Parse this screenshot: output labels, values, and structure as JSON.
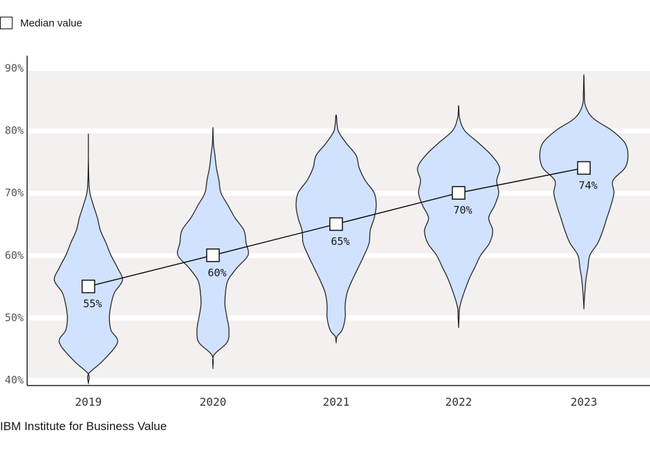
{
  "legend": {
    "label": "Median value"
  },
  "source": "IBM Institute for Business Value",
  "chart_data": {
    "type": "violin",
    "categories": [
      "2019",
      "2020",
      "2021",
      "2022",
      "2023"
    ],
    "ylim": [
      40,
      90
    ],
    "yticks": [
      40,
      50,
      60,
      70,
      80,
      90
    ],
    "ytick_labels": [
      "40%",
      "50%",
      "60%",
      "70%",
      "80%",
      "90%"
    ],
    "grid": true,
    "legend_position": "top-left",
    "colors": {
      "violin_fill": "#d0e2ff",
      "violin_stroke": "#262626",
      "band_fill": "#f5f0f0",
      "line": "#000000"
    },
    "medians": [
      55,
      60,
      65,
      70,
      74
    ],
    "median_labels": [
      "55%",
      "60%",
      "65%",
      "70%",
      "74%"
    ],
    "distributions": [
      {
        "year": "2019",
        "profile": [
          [
            39.5,
            0
          ],
          [
            41,
            0.5
          ],
          [
            43,
            28
          ],
          [
            46,
            58
          ],
          [
            48,
            45
          ],
          [
            50,
            42
          ],
          [
            52,
            45
          ],
          [
            54,
            52
          ],
          [
            56,
            68
          ],
          [
            58,
            58
          ],
          [
            60,
            45
          ],
          [
            62,
            35
          ],
          [
            64,
            24
          ],
          [
            66,
            18
          ],
          [
            68,
            10
          ],
          [
            70,
            3
          ],
          [
            72,
            1
          ],
          [
            76,
            0
          ],
          [
            79.5,
            0
          ]
        ]
      },
      {
        "year": "2020",
        "profile": [
          [
            42,
            0
          ],
          [
            44,
            2
          ],
          [
            46,
            28
          ],
          [
            48,
            32
          ],
          [
            50,
            28
          ],
          [
            52,
            24
          ],
          [
            54,
            25
          ],
          [
            56,
            30
          ],
          [
            58,
            48
          ],
          [
            60,
            70
          ],
          [
            62,
            66
          ],
          [
            64,
            62
          ],
          [
            66,
            44
          ],
          [
            68,
            30
          ],
          [
            70,
            16
          ],
          [
            72,
            12
          ],
          [
            74,
            7
          ],
          [
            76,
            4
          ],
          [
            78,
            1
          ],
          [
            80.5,
            0
          ]
        ]
      },
      {
        "year": "2021",
        "profile": [
          [
            46,
            0
          ],
          [
            47,
            2
          ],
          [
            48,
            12
          ],
          [
            50,
            18
          ],
          [
            52,
            18
          ],
          [
            54,
            22
          ],
          [
            56,
            32
          ],
          [
            58,
            44
          ],
          [
            60,
            56
          ],
          [
            62,
            66
          ],
          [
            64,
            68
          ],
          [
            66,
            76
          ],
          [
            68,
            80
          ],
          [
            70,
            76
          ],
          [
            72,
            58
          ],
          [
            74,
            46
          ],
          [
            76,
            40
          ],
          [
            78,
            20
          ],
          [
            80,
            4
          ],
          [
            82.5,
            0
          ]
        ]
      },
      {
        "year": "2022",
        "profile": [
          [
            48.5,
            0
          ],
          [
            50,
            1
          ],
          [
            52,
            3
          ],
          [
            56,
            20
          ],
          [
            58,
            32
          ],
          [
            60,
            44
          ],
          [
            62,
            62
          ],
          [
            64,
            68
          ],
          [
            66,
            60
          ],
          [
            68,
            72
          ],
          [
            70,
            80
          ],
          [
            72,
            76
          ],
          [
            74,
            82
          ],
          [
            76,
            66
          ],
          [
            78,
            40
          ],
          [
            80,
            12
          ],
          [
            82,
            2
          ],
          [
            84,
            0
          ]
        ]
      },
      {
        "year": "2023",
        "profile": [
          [
            51.5,
            0
          ],
          [
            53,
            1
          ],
          [
            56,
            4
          ],
          [
            58,
            8
          ],
          [
            60,
            12
          ],
          [
            62,
            28
          ],
          [
            64,
            38
          ],
          [
            66,
            46
          ],
          [
            68,
            54
          ],
          [
            70,
            60
          ],
          [
            72,
            58
          ],
          [
            74,
            82
          ],
          [
            76,
            88
          ],
          [
            78,
            82
          ],
          [
            80,
            56
          ],
          [
            82,
            18
          ],
          [
            84,
            3
          ],
          [
            86,
            1
          ],
          [
            89,
            0
          ]
        ]
      }
    ]
  }
}
